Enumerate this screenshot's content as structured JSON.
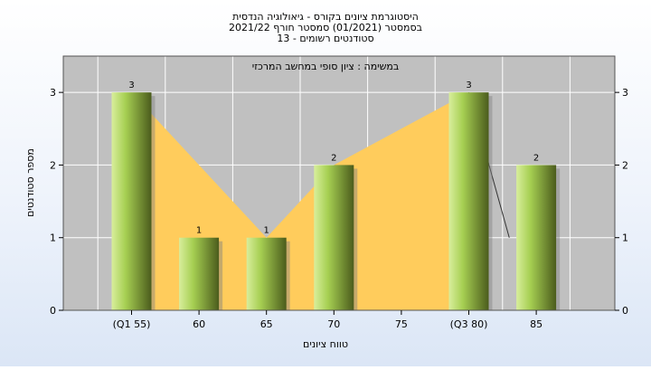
{
  "chart_data": {
    "type": "bar",
    "title_lines": [
      "היסטוגרמת ציונים בקורס - גיאולוגיה הנדסית",
      "בסמסטר  (01/2021)  סמסטר חורף  2021/22",
      "סטודנטים רשומים - 13"
    ],
    "subtitle": "במשימה : ציון סופי במחשב המרכזי",
    "xlabel": "טווח ציונים",
    "ylabel": "מספר סטודנטים",
    "categories": [
      "(Q1 55)",
      "60",
      "65",
      "70",
      "75",
      "(Q3 80)",
      "85"
    ],
    "values": [
      3,
      1,
      1,
      2,
      0,
      3,
      2
    ],
    "bar_labels": [
      "3",
      "1",
      "1",
      "2",
      "",
      "3",
      "2"
    ],
    "ylim": [
      0,
      3.5
    ],
    "yticks": [
      "0",
      "1",
      "2",
      "3"
    ],
    "area_values": [
      3,
      2,
      1,
      2,
      2.5,
      3,
      1
    ],
    "grid": true,
    "colors": {
      "plot_bg": "#c0c0c0",
      "area": "#ffcc5c",
      "bar_light": "#d8ee9c",
      "bar_mid": "#a6cf52",
      "bar_dark": "#4b5c1c",
      "gridline": "#ffffff"
    }
  }
}
